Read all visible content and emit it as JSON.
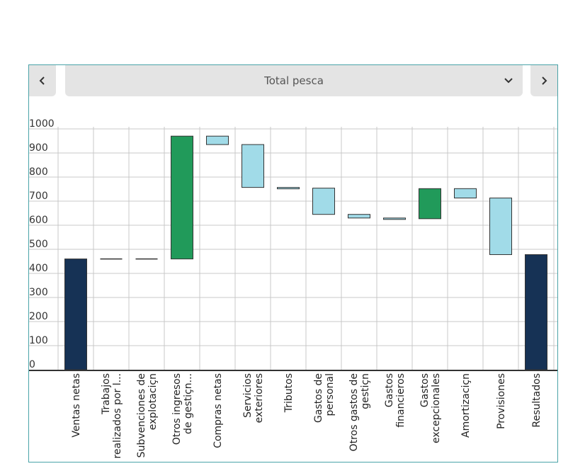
{
  "selector": {
    "label": "Total pesca"
  },
  "colors": {
    "total": "#163255",
    "increase": "#219a5a",
    "decrease": "#a1dbe8",
    "grid": "#c8c8c8",
    "border": "#4aa3a8"
  },
  "chart_data": {
    "type": "bar",
    "subtype": "waterfall",
    "ylim": [
      0,
      1000
    ],
    "yticks": [
      0,
      100,
      200,
      300,
      400,
      500,
      600,
      700,
      800,
      900,
      1000
    ],
    "grid": true,
    "categories": [
      {
        "label": [
          "Ventas netas"
        ],
        "start": 0,
        "end": 460,
        "kind": "total"
      },
      {
        "label": [
          "Trabajos",
          "realizados por l..."
        ],
        "start": 460,
        "end": 460,
        "kind": "flat"
      },
      {
        "label": [
          "Subvenciones de",
          "explotaciçn"
        ],
        "start": 460,
        "end": 460,
        "kind": "flat"
      },
      {
        "label": [
          "Otros ingresos",
          "de gestiçn..."
        ],
        "start": 460,
        "end": 970,
        "kind": "increase"
      },
      {
        "label": [
          "Compras netas"
        ],
        "start": 970,
        "end": 935,
        "kind": "decrease"
      },
      {
        "label": [
          "Servicios",
          "exteriores"
        ],
        "start": 935,
        "end": 757,
        "kind": "decrease"
      },
      {
        "label": [
          "Tributos"
        ],
        "start": 757,
        "end": 754,
        "kind": "decrease"
      },
      {
        "label": [
          "Gastos de",
          "personal"
        ],
        "start": 754,
        "end": 645,
        "kind": "decrease"
      },
      {
        "label": [
          "Otros gastos de",
          "gestiçn"
        ],
        "start": 645,
        "end": 630,
        "kind": "decrease"
      },
      {
        "label": [
          "Gastos",
          "financieros"
        ],
        "start": 630,
        "end": 627,
        "kind": "decrease"
      },
      {
        "label": [
          "Gastos",
          "excepcionales"
        ],
        "start": 627,
        "end": 752,
        "kind": "increase"
      },
      {
        "label": [
          "Amortizaciçn"
        ],
        "start": 752,
        "end": 713,
        "kind": "decrease"
      },
      {
        "label": [
          "Provisiones"
        ],
        "start": 713,
        "end": 478,
        "kind": "decrease"
      },
      {
        "label": [
          "Resultados"
        ],
        "start": 0,
        "end": 478,
        "kind": "total"
      }
    ]
  }
}
